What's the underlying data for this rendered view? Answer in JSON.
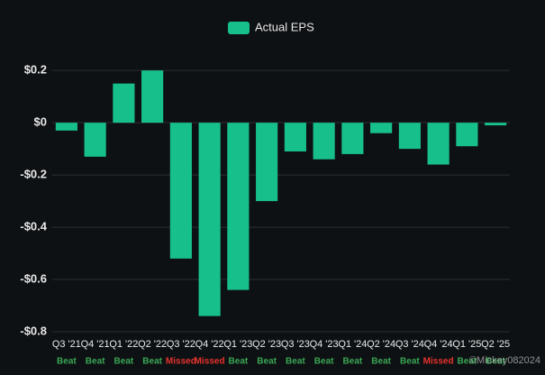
{
  "chart_data": {
    "type": "bar",
    "legend": "Actual EPS",
    "categories": [
      "Q3 '21",
      "Q4 '21",
      "Q1 '22",
      "Q2 '22",
      "Q3 '22",
      "Q4 '22",
      "Q1 '23",
      "Q2 '23",
      "Q3 '23",
      "Q4 '23",
      "Q1 '24",
      "Q2 '24",
      "Q3 '24",
      "Q4 '24",
      "Q1 '25",
      "Q2 '25"
    ],
    "values": [
      -0.03,
      -0.13,
      0.15,
      0.2,
      -0.52,
      -0.74,
      -0.64,
      -0.3,
      -0.11,
      -0.14,
      -0.12,
      -0.04,
      -0.1,
      -0.16,
      -0.09,
      -0.01
    ],
    "results": [
      "Beat",
      "Beat",
      "Beat",
      "Beat",
      "Missed",
      "Missed",
      "Beat",
      "Beat",
      "Beat",
      "Beat",
      "Beat",
      "Beat",
      "Beat",
      "Missed",
      "Beat",
      "Beat"
    ],
    "result_colors": {
      "Beat": "#3aa655",
      "Missed": "#e5322d"
    },
    "color": "#17c08a",
    "ylim": [
      -0.8,
      0.28
    ],
    "yticks": [
      {
        "value": 0.2,
        "label": "$0.2"
      },
      {
        "value": 0,
        "label": "$0"
      },
      {
        "value": -0.2,
        "label": "-$0.2"
      },
      {
        "value": -0.4,
        "label": "-$0.4"
      },
      {
        "value": -0.6,
        "label": "-$0.6"
      },
      {
        "value": -0.8,
        "label": "-$0.8"
      }
    ],
    "grid": true,
    "watermark": "©Mickey082024"
  }
}
